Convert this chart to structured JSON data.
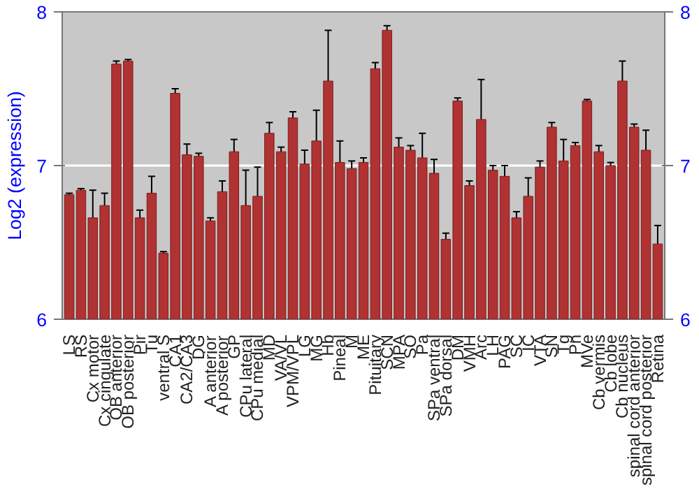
{
  "chart_data": {
    "type": "bar",
    "ylabel": "Log2 (expression)",
    "categories": [
      "LS",
      "RS",
      "Cx motor",
      "Cx cingulate",
      "OB anterior",
      "OB posterior",
      "Pir",
      "Tu",
      "ventral S",
      "CA1",
      "CA2/CA3",
      "DG",
      "A anterior",
      "A posterior",
      "GP",
      "CPu lateral",
      "CPu medial",
      "MD",
      "VA/VL",
      "VPM/VPL",
      "LG",
      "MG",
      "Hb",
      "Pineal",
      "M",
      "ME",
      "Pituitary",
      "SCN",
      "MPA",
      "SO",
      "Pa",
      "SPa ventral",
      "SPa dorsal",
      "DM",
      "VMH",
      "Arc",
      "LH",
      "PAG",
      "SC",
      "IC",
      "VTA",
      "SN",
      "Tg",
      "Pn",
      "MVe",
      "Cb vermis",
      "Cb lobe",
      "Cb nucleus",
      "spinal cord anterior",
      "spinal cord posterior",
      "Retina"
    ],
    "values": [
      6.81,
      6.84,
      6.66,
      6.74,
      7.66,
      7.68,
      6.66,
      6.82,
      6.43,
      7.47,
      7.07,
      7.06,
      6.64,
      6.83,
      7.09,
      6.74,
      6.8,
      7.21,
      7.09,
      7.31,
      7.01,
      7.16,
      7.55,
      7.02,
      6.98,
      7.02,
      7.63,
      7.88,
      7.12,
      7.1,
      7.05,
      6.95,
      6.52,
      7.42,
      6.87,
      7.3,
      6.97,
      6.93,
      6.66,
      6.8,
      6.99,
      7.25,
      7.03,
      7.13,
      7.42,
      7.09,
      7.0,
      7.55,
      7.25,
      7.1,
      6.49
    ],
    "errors": [
      0.01,
      0.01,
      0.18,
      0.08,
      0.02,
      0.01,
      0.05,
      0.11,
      0.01,
      0.03,
      0.07,
      0.02,
      0.02,
      0.07,
      0.08,
      0.23,
      0.19,
      0.07,
      0.03,
      0.04,
      0.09,
      0.2,
      0.33,
      0.14,
      0.05,
      0.03,
      0.04,
      0.03,
      0.06,
      0.03,
      0.16,
      0.09,
      0.04,
      0.02,
      0.03,
      0.26,
      0.03,
      0.07,
      0.04,
      0.12,
      0.04,
      0.03,
      0.14,
      0.02,
      0.01,
      0.04,
      0.02,
      0.13,
      0.02,
      0.13,
      0.12
    ],
    "color": "#b03232",
    "ylim": [
      6,
      8
    ],
    "yticks": [
      6,
      7,
      8
    ],
    "y2lim": [
      6,
      8
    ],
    "y2ticks": [
      6,
      7,
      8
    ],
    "grid": "y"
  }
}
